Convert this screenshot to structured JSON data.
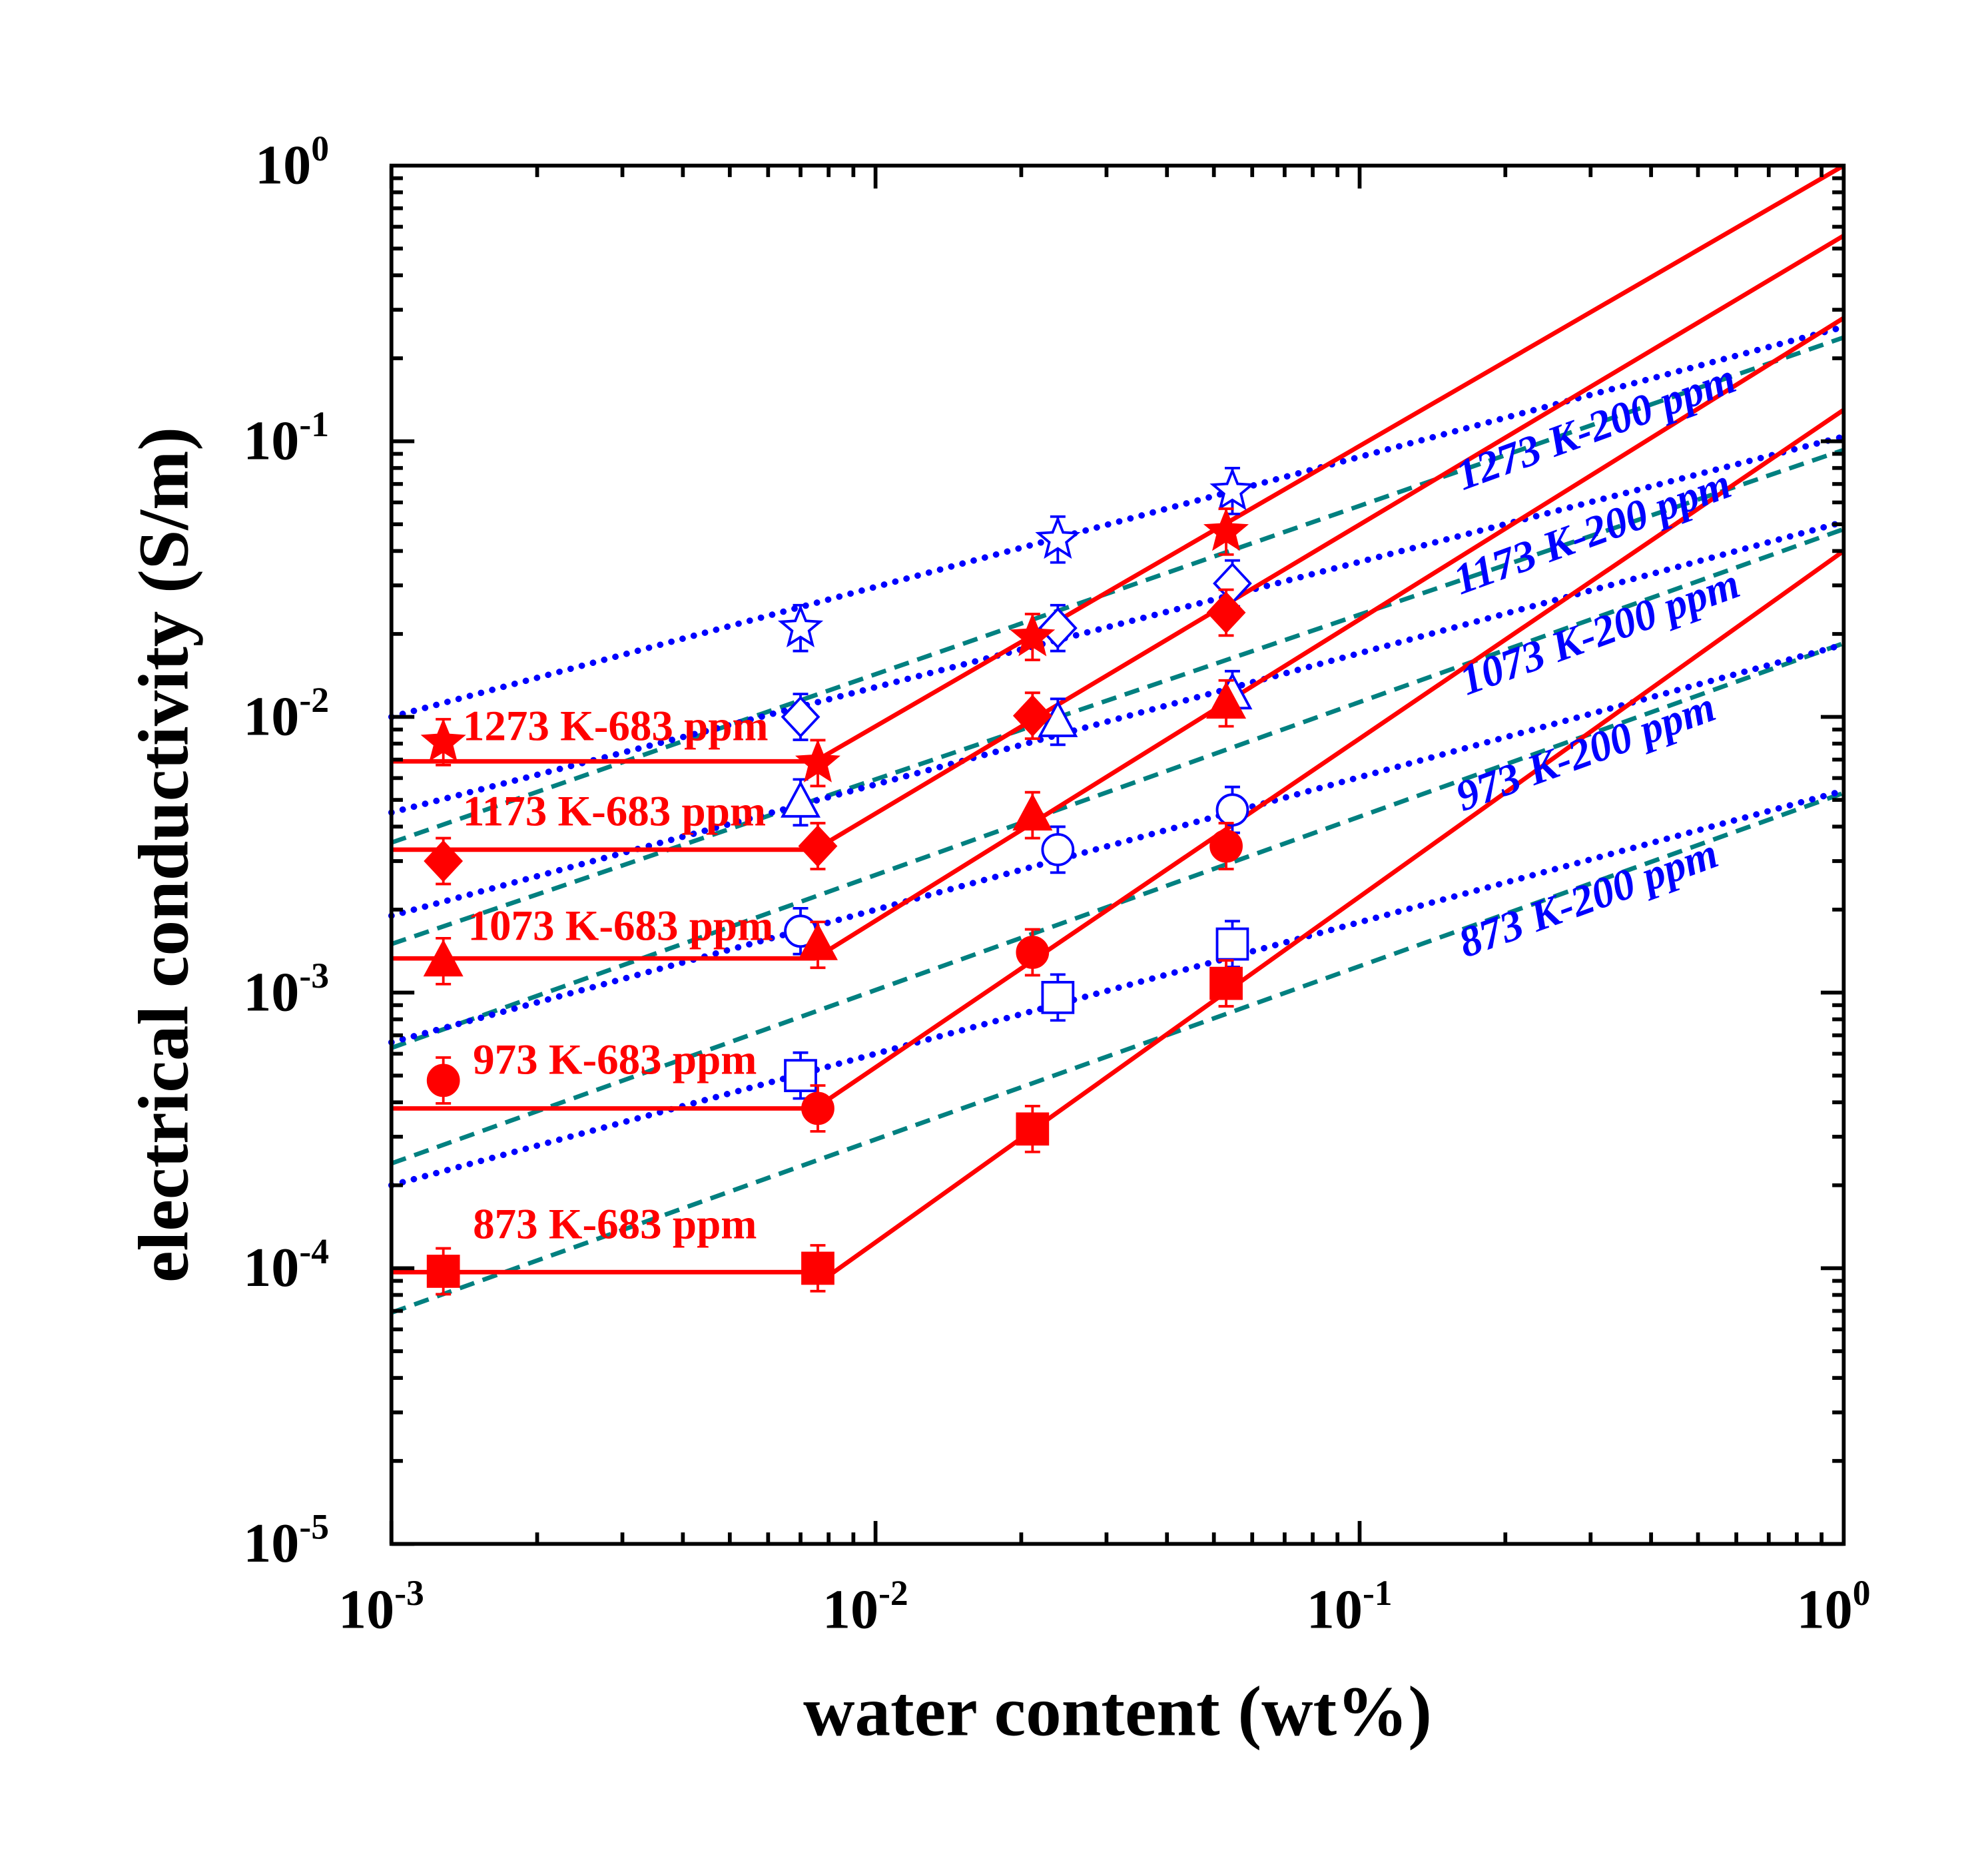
{
  "chart_data": {
    "type": "scatter",
    "xlabel": "water content (wt%)",
    "ylabel": "electrical conductivity (S/m)",
    "xscale": "log",
    "yscale": "log",
    "xlim": [
      0.001,
      1
    ],
    "ylim": [
      1e-05,
      1
    ],
    "x_ticks": [
      {
        "base": "10",
        "exp": "-3",
        "v": 0.001
      },
      {
        "base": "10",
        "exp": "-2",
        "v": 0.01
      },
      {
        "base": "10",
        "exp": "-1",
        "v": 0.1
      },
      {
        "base": "10",
        "exp": "0",
        "v": 1
      }
    ],
    "y_ticks": [
      {
        "base": "10",
        "exp": "-5",
        "v": 1e-05
      },
      {
        "base": "10",
        "exp": "-4",
        "v": 0.0001
      },
      {
        "base": "10",
        "exp": "-3",
        "v": 0.001
      },
      {
        "base": "10",
        "exp": "-2",
        "v": 0.01
      },
      {
        "base": "10",
        "exp": "-1",
        "v": 0.1
      },
      {
        "base": "10",
        "exp": "0",
        "v": 1
      }
    ],
    "colors": {
      "red": "#ff0000",
      "blue": "#0000ff",
      "teal": "#008080"
    },
    "series_683": [
      {
        "name": "1273 K-683 ppm",
        "marker": "star",
        "x": [
          0.00128,
          0.0076,
          0.0211,
          0.053
        ],
        "y": [
          0.0081,
          0.0068,
          0.0195,
          0.047
        ],
        "fit": {
          "plateau": 0.0069,
          "break_x": 0.0075,
          "y_at_1": 1.0
        }
      },
      {
        "name": "1173 K-683 ppm",
        "marker": "diamond",
        "x": [
          0.00128,
          0.0076,
          0.0211,
          0.053
        ],
        "y": [
          0.003,
          0.0034,
          0.0101,
          0.0239
        ],
        "fit": {
          "plateau": 0.0033,
          "break_x": 0.0075,
          "y_at_1": 0.557
        }
      },
      {
        "name": "1073 K-683 ppm",
        "marker": "triangle",
        "x": [
          0.00128,
          0.0076,
          0.0211,
          0.053
        ],
        "y": [
          0.0013,
          0.00149,
          0.0044,
          0.0112
        ],
        "fit": {
          "plateau": 0.00133,
          "break_x": 0.0075,
          "y_at_1": 0.28
        }
      },
      {
        "name": "973 K-683 ppm",
        "marker": "circle",
        "x": [
          0.00128,
          0.0076,
          0.0211,
          0.053
        ],
        "y": [
          0.00048,
          0.00038,
          0.0014,
          0.0034
        ],
        "fit": {
          "plateau": 0.00038,
          "break_x": 0.0075,
          "y_at_1": 0.13
        }
      },
      {
        "name": "873 K-683 ppm",
        "marker": "square",
        "x": [
          0.00128,
          0.0076,
          0.0211,
          0.053
        ],
        "y": [
          9.75e-05,
          0.0001,
          0.00032,
          0.00108
        ],
        "fit": {
          "plateau": 9.68e-05,
          "break_x": 0.0082,
          "y_at_1": 0.04
        }
      }
    ],
    "series_200": [
      {
        "name": "1273 K-200 ppm",
        "marker": "star",
        "x": [
          0.007,
          0.0238,
          0.0546
        ],
        "y": [
          0.021,
          0.044,
          0.066
        ],
        "dotted": [
          0.01,
          0.26
        ],
        "dashed": [
          0.0035,
          0.238
        ]
      },
      {
        "name": "1173 K-200 ppm",
        "marker": "diamond",
        "x": [
          0.007,
          0.0238,
          0.0546
        ],
        "y": [
          0.01,
          0.021,
          0.0305
        ],
        "dotted": [
          0.0045,
          0.104
        ],
        "dashed": [
          0.0015,
          0.093
        ]
      },
      {
        "name": "1073 K-200 ppm",
        "marker": "triangle",
        "x": [
          0.007,
          0.0238,
          0.0546
        ],
        "y": [
          0.0049,
          0.0096,
          0.0121
        ],
        "dotted": [
          0.0019,
          0.051
        ],
        "dashed": [
          0.00063,
          0.048
        ]
      },
      {
        "name": "973 K-200 ppm",
        "marker": "circle",
        "x": [
          0.007,
          0.0238,
          0.0546
        ],
        "y": [
          0.00167,
          0.0033,
          0.0046
        ],
        "dotted": [
          0.00066,
          0.0183
        ],
        "dashed": [
          0.00024,
          0.0185
        ]
      },
      {
        "name": "873 K-200 ppm",
        "marker": "square",
        "x": [
          0.007,
          0.0238,
          0.0546
        ],
        "y": [
          0.0005,
          0.00096,
          0.0015
        ],
        "dotted": [
          0.0002,
          0.0054
        ],
        "dashed": [
          6.9e-05,
          0.0053
        ]
      }
    ]
  }
}
